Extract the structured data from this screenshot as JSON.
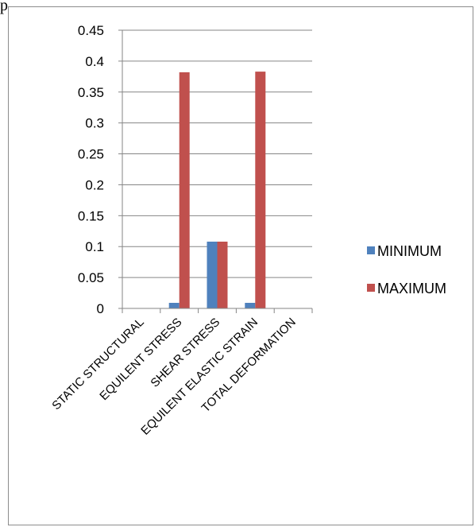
{
  "page_mark": "p",
  "chart_data": {
    "type": "bar",
    "title": "",
    "xlabel": "",
    "ylabel": "",
    "categories": [
      "STATIC STRUCTURAL",
      "EQUILENT STRESS",
      "SHEAR STRESS",
      "EQUILENT ELASTIC STRAIN",
      "TOTAL DEFORMATION"
    ],
    "series": [
      {
        "name": "MINIMUM",
        "color": "#4f81bd",
        "values": [
          0,
          0.009,
          0.108,
          0.009,
          0
        ]
      },
      {
        "name": "MAXIMUM",
        "color": "#c0504d",
        "values": [
          0,
          0.382,
          0.108,
          0.383,
          0
        ]
      }
    ],
    "ylim": [
      0,
      0.45
    ],
    "yticks": [
      "0",
      "0.05",
      "0.1",
      "0.15",
      "0.2",
      "0.25",
      "0.3",
      "0.35",
      "0.4",
      "0.45"
    ],
    "grid": true,
    "legend_position": "right"
  }
}
